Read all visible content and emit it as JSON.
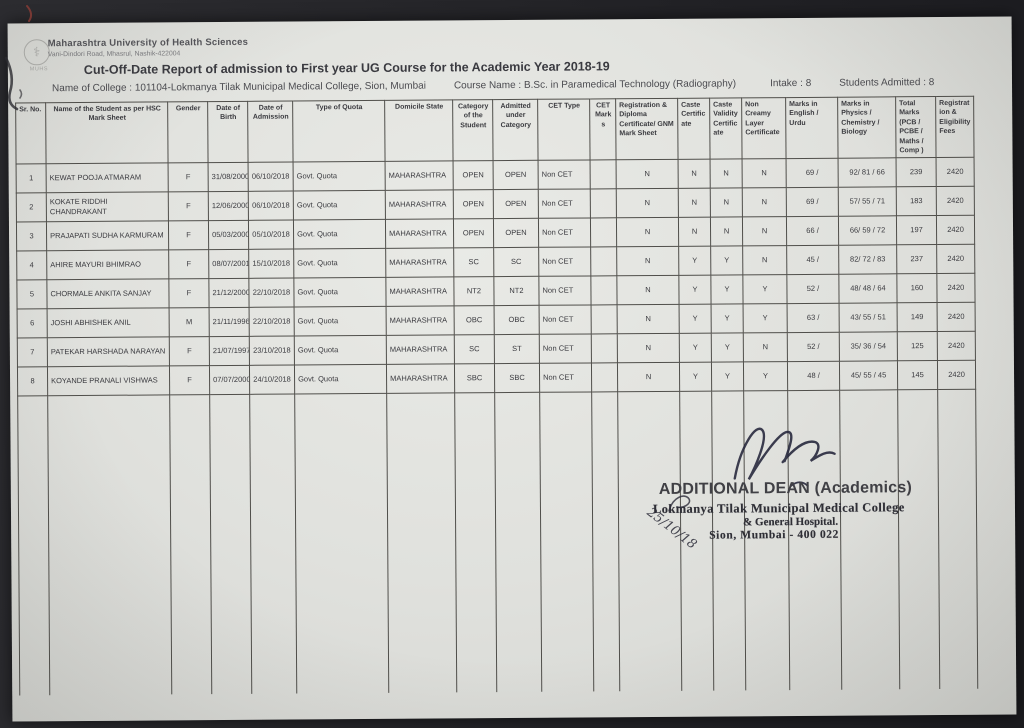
{
  "colors": {
    "paper": "#e2e3df",
    "scan_background": "#242428",
    "ink": "#3a3a3f",
    "stamp_ink": "#2f2f36"
  },
  "header": {
    "institution": "Maharashtra University of Health Sciences",
    "address": "Vani-Dindori Road, Mhasrul, Nashik-422004",
    "logo": "MUHS",
    "report_title": "Cut-Off-Date Report of admission to First year UG Course for the Academic Year 2018-19",
    "college": "Name of College : 101104-Lokmanya Tilak Municipal Medical College, Sion, Mumbai",
    "course": "Course Name : B.Sc. in Paramedical Technology  (Radiography)",
    "intake": "Intake : 8",
    "admitted": "Students Admitted : 8"
  },
  "table": {
    "columns": [
      "Sr. No.",
      "Name of the Student as per HSC Mark Sheet",
      "Gender",
      "Date of Birth",
      "Date of Admission",
      "Type of Quota",
      "Domicile State",
      "Category of the Student",
      "Admitted under Category",
      "CET Type",
      "CET Marks",
      "Registration & Diploma Certificate/ GNM Mark Sheet",
      "Caste Certificate",
      "Caste Validity Certificate",
      "Non Creamy Layer Certificate",
      "Marks in English / Urdu",
      "Marks in Physics / Chemistry / Biology",
      "Total Marks (PCB / PCBE / Maths / Comp )",
      "Registration & Eligibility Fees"
    ],
    "rows": [
      [
        "1",
        "KEWAT POOJA ATMARAM",
        "F",
        "31/08/2000",
        "06/10/2018",
        "Govt. Quota",
        "MAHARASHTRA",
        "OPEN",
        "OPEN",
        "Non CET",
        "",
        "N",
        "N",
        "N",
        "N",
        "69 /",
        "92/ 81 / 66",
        "239",
        "2420"
      ],
      [
        "2",
        "KOKATE RIDDHI CHANDRAKANT",
        "F",
        "12/06/2000",
        "06/10/2018",
        "Govt. Quota",
        "MAHARASHTRA",
        "OPEN",
        "OPEN",
        "Non CET",
        "",
        "N",
        "N",
        "N",
        "N",
        "69 /",
        "57/ 55 / 71",
        "183",
        "2420"
      ],
      [
        "3",
        "PRAJAPATI SUDHA KARMURAM",
        "F",
        "05/03/2000",
        "05/10/2018",
        "Govt. Quota",
        "MAHARASHTRA",
        "OPEN",
        "OPEN",
        "Non CET",
        "",
        "N",
        "N",
        "N",
        "N",
        "66 /",
        "66/ 59 / 72",
        "197",
        "2420"
      ],
      [
        "4",
        "AHIRE MAYURI BHIMRAO",
        "F",
        "08/07/2001",
        "15/10/2018",
        "Govt. Quota",
        "MAHARASHTRA",
        "SC",
        "SC",
        "Non CET",
        "",
        "N",
        "Y",
        "Y",
        "N",
        "45 /",
        "82/ 72 / 83",
        "237",
        "2420"
      ],
      [
        "5",
        "CHORMALE ANKITA SANJAY",
        "F",
        "21/12/2000",
        "22/10/2018",
        "Govt. Quota",
        "MAHARASHTRA",
        "NT2",
        "NT2",
        "Non CET",
        "",
        "N",
        "Y",
        "Y",
        "Y",
        "52 /",
        "48/ 48 / 64",
        "160",
        "2420"
      ],
      [
        "6",
        "JOSHI ABHISHEK ANIL",
        "M",
        "21/11/1996",
        "22/10/2018",
        "Govt. Quota",
        "MAHARASHTRA",
        "OBC",
        "OBC",
        "Non CET",
        "",
        "N",
        "Y",
        "Y",
        "Y",
        "63 /",
        "43/ 55 / 51",
        "149",
        "2420"
      ],
      [
        "7",
        "PATEKAR HARSHADA NARAYAN",
        "F",
        "21/07/1997",
        "23/10/2018",
        "Govt. Quota",
        "MAHARASHTRA",
        "SC",
        "ST",
        "Non CET",
        "",
        "N",
        "Y",
        "Y",
        "N",
        "52 /",
        "35/ 36 / 54",
        "125",
        "2420"
      ],
      [
        "8",
        "KOYANDE PRANALI VISHWAS",
        "F",
        "07/07/2000",
        "24/10/2018",
        "Govt. Quota",
        "MAHARASHTRA",
        "SBC",
        "SBC",
        "Non CET",
        "",
        "N",
        "Y",
        "Y",
        "Y",
        "48 /",
        "45/ 55 / 45",
        "145",
        "2420"
      ]
    ]
  },
  "signature": {
    "designation": "ADDITIONAL DEAN (Academics)",
    "stamp_line1": "Lokmanya Tilak Municipal Medical College",
    "stamp_line2": "& General Hospital.",
    "stamp_line3": "Sion, Mumbai - 400 022",
    "handwritten_date": "25/10/18"
  }
}
